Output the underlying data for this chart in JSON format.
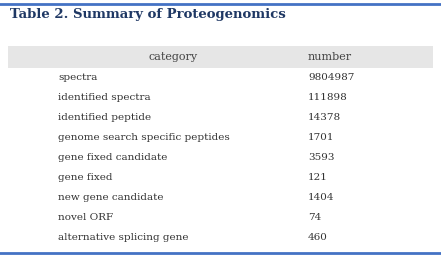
{
  "title": "Table 2. Summary of Proteogenomics",
  "col_headers": [
    "category",
    "number"
  ],
  "rows": [
    [
      "spectra",
      "9804987"
    ],
    [
      "identified spectra",
      "111898"
    ],
    [
      "identified peptide",
      "14378"
    ],
    [
      "genome search specific peptides",
      "1701"
    ],
    [
      "gene fixed candidate",
      "3593"
    ],
    [
      "gene fixed",
      "121"
    ],
    [
      "new gene candidate",
      "1404"
    ],
    [
      "novel ORF",
      "74"
    ],
    [
      "alternative splicing gene",
      "460"
    ]
  ],
  "bg_color": "#ffffff",
  "header_bg": "#e6e6e6",
  "border_color": "#4472c4",
  "title_color": "#1f3864",
  "header_text_color": "#444444",
  "row_text_color": "#333333",
  "title_fontsize": 9.5,
  "header_fontsize": 8,
  "row_fontsize": 7.5,
  "border_width": 2.0,
  "fig_width": 4.41,
  "fig_height": 2.57,
  "dpi": 100
}
